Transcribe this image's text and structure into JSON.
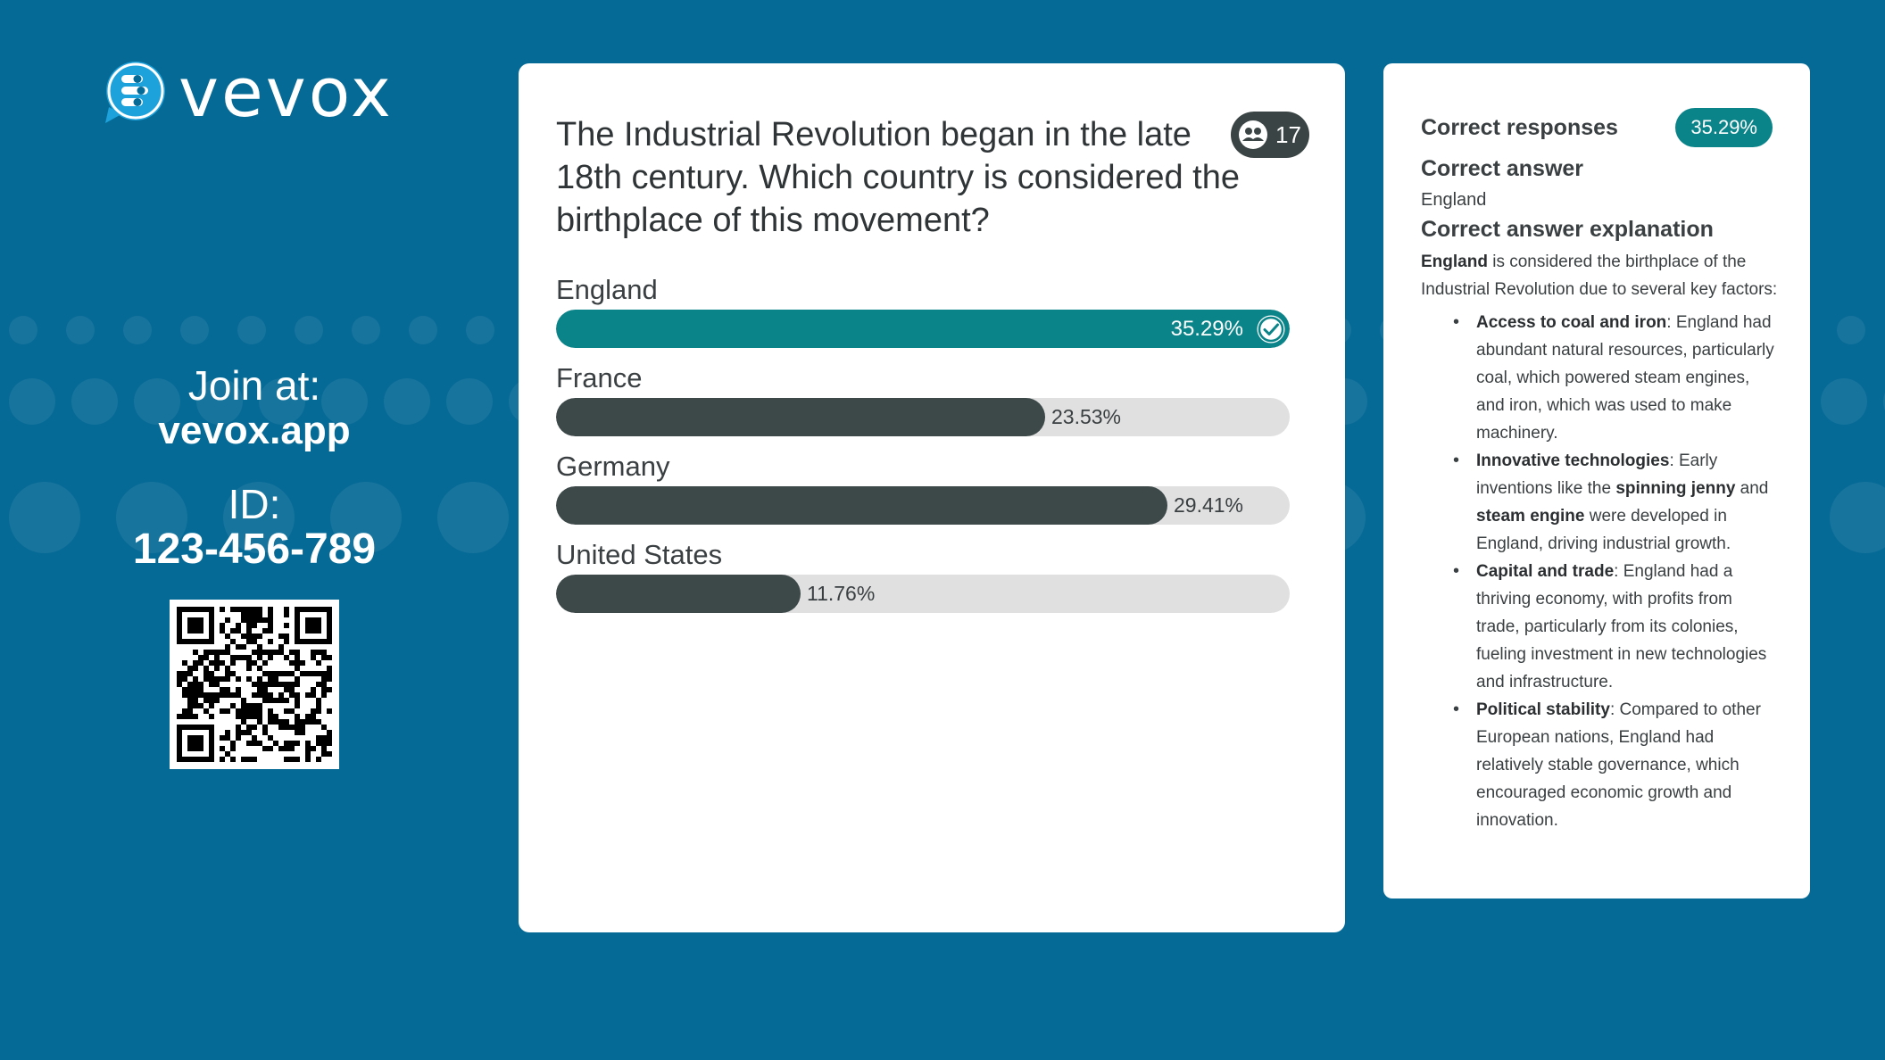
{
  "brand": {
    "name": "vevox"
  },
  "join": {
    "label": "Join at:",
    "url": "vevox.app",
    "id_label": "ID:",
    "id_value": "123-456-789"
  },
  "question": {
    "text": "The Industrial Revolution began in the late 18th century. Which country is considered the birthplace of this movement?",
    "response_count": "17",
    "options": [
      {
        "label": "England",
        "percent_label": "35.29%",
        "percent": 35.29,
        "correct": true
      },
      {
        "label": "France",
        "percent_label": "23.53%",
        "percent": 23.53,
        "correct": false
      },
      {
        "label": "Germany",
        "percent_label": "29.41%",
        "percent": 29.41,
        "correct": false
      },
      {
        "label": "United States",
        "percent_label": "11.76%",
        "percent": 11.76,
        "correct": false
      }
    ],
    "scale_max_percent": 35.29
  },
  "explanation": {
    "correct_responses_label": "Correct responses",
    "correct_responses_value": "35.29%",
    "correct_answer_label": "Correct answer",
    "correct_answer_value": "England",
    "explanation_label": "Correct answer explanation",
    "intro_bold": "England",
    "intro_rest": " is considered the birthplace of the Industrial Revolution due to several key factors:",
    "points": [
      {
        "title": "Access to coal and iron",
        "segments": [
          {
            "t": ": England had abundant natural resources, particularly coal, which powered steam engines, and iron, which was used to make machinery."
          }
        ]
      },
      {
        "title": "Innovative technologies",
        "segments": [
          {
            "t": ": Early inventions like the "
          },
          {
            "t": "spinning jenny",
            "b": true
          },
          {
            "t": " and "
          },
          {
            "t": "steam engine",
            "b": true
          },
          {
            "t": " were developed in England, driving industrial growth."
          }
        ]
      },
      {
        "title": "Capital and trade",
        "segments": [
          {
            "t": ": England had a thriving economy, with profits from trade, particularly from its colonies, fueling investment in new technologies and infrastructure."
          }
        ]
      },
      {
        "title": "Political stability",
        "segments": [
          {
            "t": ": Compared to other European nations, England had relatively stable governance, which encouraged economic growth and innovation."
          }
        ]
      }
    ]
  },
  "colors": {
    "background": "#066a96",
    "correct": "#0b8489",
    "bar": "#3d4848",
    "track": "#e0e0e0"
  }
}
